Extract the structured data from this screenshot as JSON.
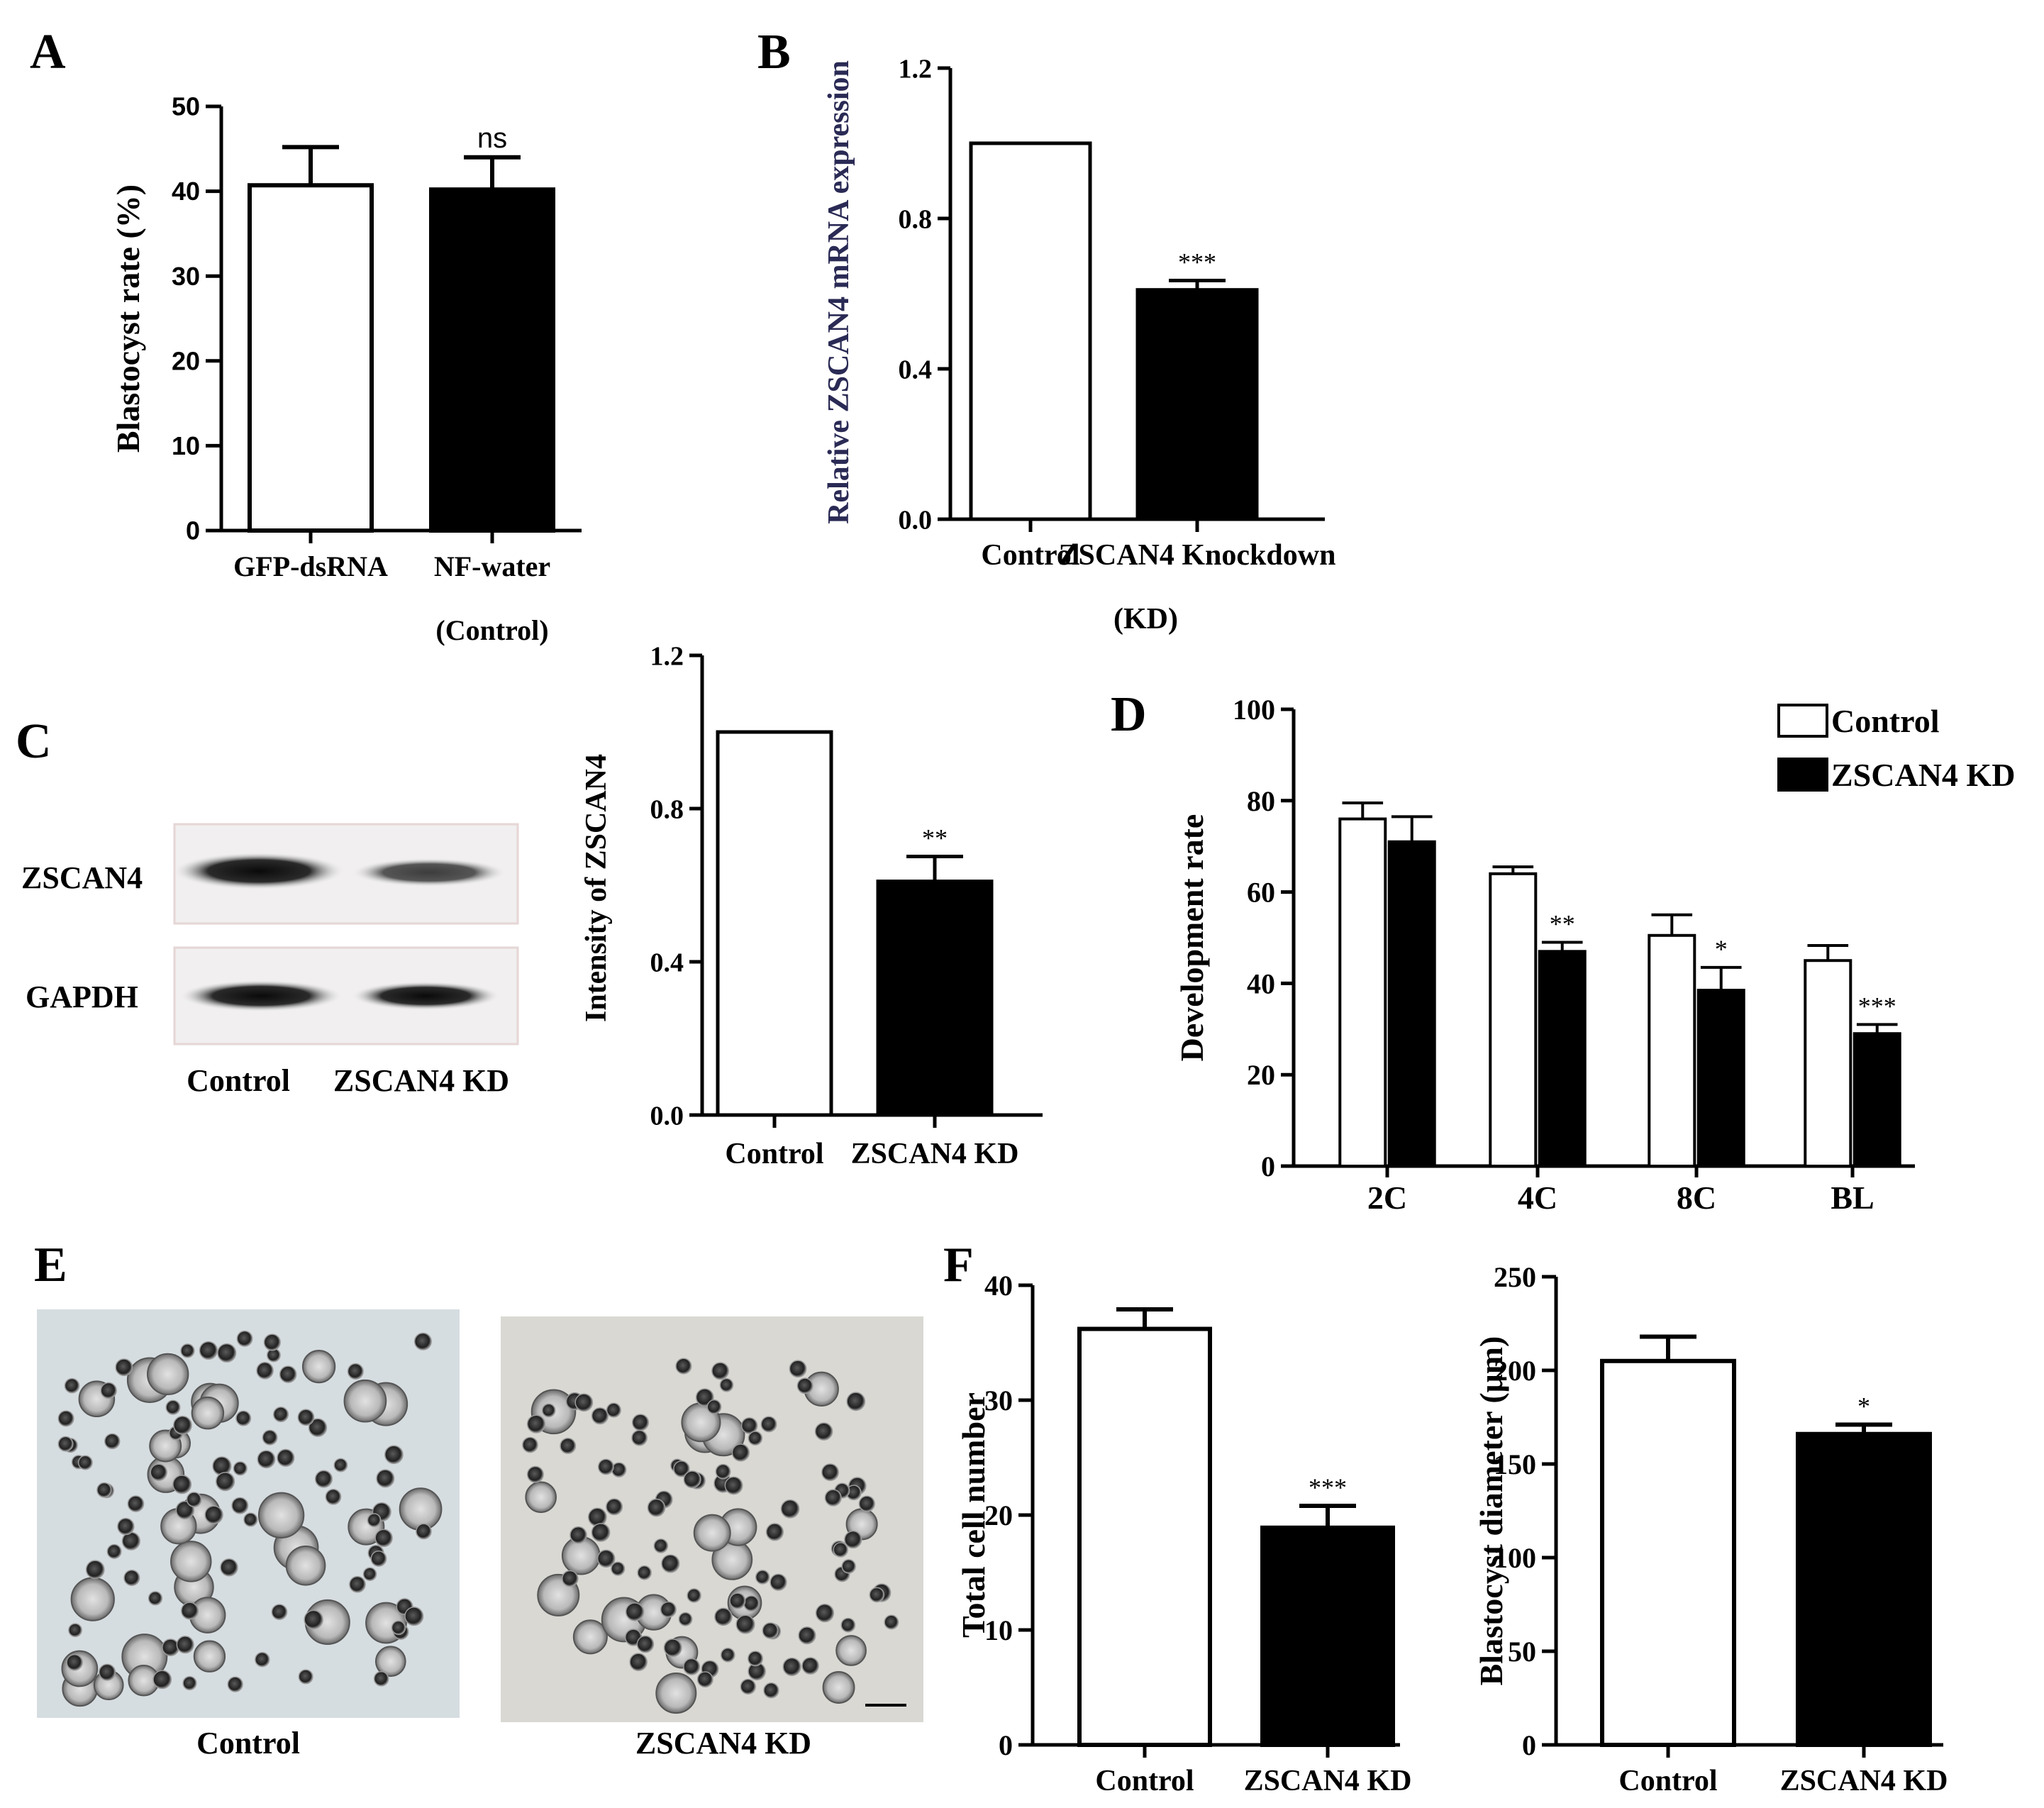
{
  "chart_data": [
    {
      "panel": "A",
      "type": "bar",
      "title": "",
      "ylabel": "Blastocyst rate (%)",
      "xlabel": "",
      "ylim": [
        0,
        50
      ],
      "yticks": [
        "0",
        "10",
        "20",
        "30",
        "40",
        "50"
      ],
      "categories": [
        "GFP-dsRNA",
        "NF-water\n(Control)"
      ],
      "values": [
        40.7,
        40.2
      ],
      "errors": [
        4.5,
        3.8
      ],
      "fills": [
        "#ffffff",
        "#000000"
      ],
      "annotations": [
        "",
        "ns"
      ]
    },
    {
      "panel": "B",
      "type": "bar",
      "title": "",
      "ylabel": "Relative ZSCAN4 mRNA expression",
      "xlabel": "",
      "ylim": [
        0,
        1.2
      ],
      "yticks": [
        "0.0",
        "0.4",
        "0.8",
        "1.2"
      ],
      "categories": [
        "Control",
        "ZSCAN4 Knockdown\n(KD)"
      ],
      "values": [
        1.0,
        0.61
      ],
      "errors": [
        0,
        0.025
      ],
      "fills": [
        "#ffffff",
        "#000000"
      ],
      "annotations": [
        "",
        "***"
      ]
    },
    {
      "panel": "C",
      "type": "bar",
      "title": "",
      "ylabel": "Intensity of ZSCAN4",
      "xlabel": "",
      "ylim": [
        0,
        1.2
      ],
      "yticks": [
        "0.0",
        "0.4",
        "0.8",
        "1.2"
      ],
      "categories": [
        "Control",
        "ZSCAN4 KD"
      ],
      "values": [
        1.0,
        0.61
      ],
      "errors": [
        0,
        0.065
      ],
      "fills": [
        "#ffffff",
        "#000000"
      ],
      "annotations": [
        "",
        "**"
      ]
    },
    {
      "panel": "D",
      "type": "bar",
      "title": "",
      "ylabel": "Development rate",
      "xlabel": "",
      "ylim": [
        0,
        100
      ],
      "yticks": [
        "0",
        "20",
        "40",
        "60",
        "80",
        "100"
      ],
      "categories": [
        "2C",
        "4C",
        "8C",
        "BL"
      ],
      "legend_position": "top-right",
      "series": [
        {
          "name": "Control",
          "fill": "#ffffff",
          "values": [
            76,
            64,
            50.5,
            45
          ],
          "errors": [
            3.5,
            1.5,
            4.5,
            3.3
          ],
          "annotations": [
            "",
            "",
            "",
            ""
          ]
        },
        {
          "name": "ZSCAN4 KD",
          "fill": "#000000",
          "values": [
            71,
            47,
            38.5,
            29
          ],
          "errors": [
            5.5,
            2.0,
            5.0,
            2.0
          ],
          "annotations": [
            "",
            "**",
            "*",
            "***"
          ]
        }
      ]
    },
    {
      "panel": "F",
      "type": "bar",
      "title": "",
      "ylabel": "Total cell number",
      "xlabel": "",
      "ylim": [
        0,
        40
      ],
      "yticks": [
        "0",
        "10",
        "20",
        "30",
        "40"
      ],
      "categories": [
        "Control",
        "ZSCAN4 KD"
      ],
      "values": [
        36.2,
        18.9
      ],
      "errors": [
        1.7,
        1.9
      ],
      "fills": [
        "#ffffff",
        "#000000"
      ],
      "annotations": [
        "",
        "***"
      ]
    },
    {
      "panel": "F2",
      "type": "bar",
      "title": "",
      "ylabel": "Blastocyst diameter (μm)",
      "xlabel": "",
      "ylim": [
        0,
        250
      ],
      "yticks": [
        "0",
        "50",
        "100",
        "150",
        "200",
        "250"
      ],
      "categories": [
        "Control",
        "ZSCAN4 KD"
      ],
      "values": [
        205,
        166
      ],
      "errors": [
        13,
        5
      ],
      "fills": [
        "#ffffff",
        "#000000"
      ],
      "annotations": [
        "",
        "*"
      ]
    }
  ],
  "panel_letters": {
    "A": "A",
    "B": "B",
    "C": "C",
    "D": "D",
    "E": "E",
    "F": "F"
  },
  "blot": {
    "rows": [
      "ZSCAN4",
      "GAPDH"
    ],
    "lanes": [
      "Control",
      "ZSCAN4 KD"
    ]
  },
  "micrographs": {
    "left_caption": "Control",
    "right_caption": "ZSCAN4 KD"
  }
}
